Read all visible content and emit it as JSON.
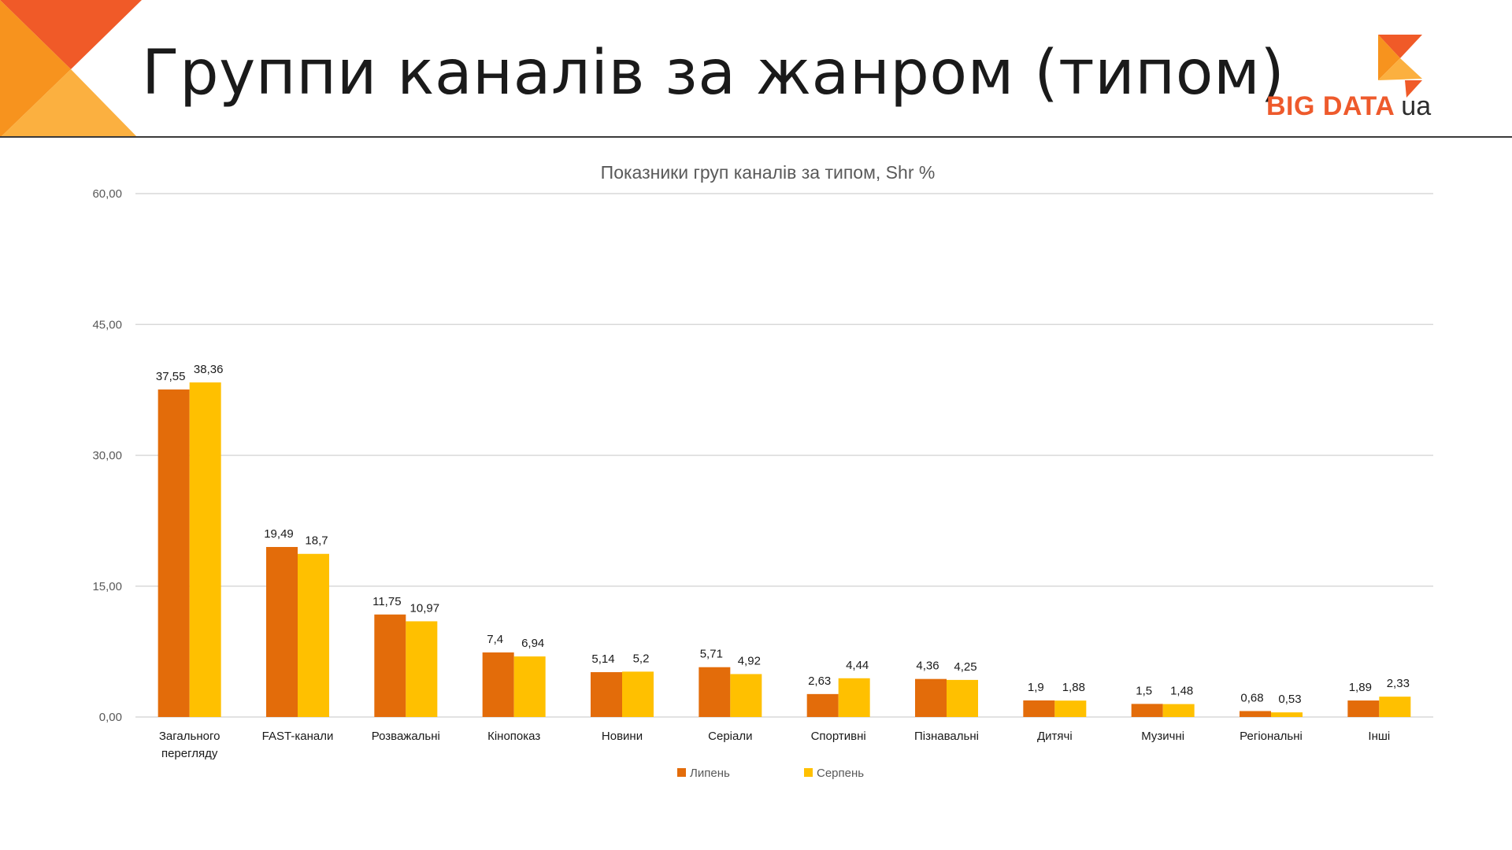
{
  "slide": {
    "title": "Группи каналів за жанром (типом)",
    "logo": {
      "text_main": "BIG DATA",
      "text_suffix": "ua"
    }
  },
  "colors": {
    "july": "#e36c0a",
    "august": "#ffc000",
    "grid": "#d9d9d9",
    "corner_dark": "#f05a28",
    "corner_light": "#f7931e"
  },
  "chart_data": {
    "type": "bar",
    "title": "Показники груп каналів за типом, Shr %",
    "categories": [
      [
        "Загального",
        "перегляду"
      ],
      [
        "FAST-канали"
      ],
      [
        "Розважальні"
      ],
      [
        "Кінопоказ"
      ],
      [
        "Новини"
      ],
      [
        "Серіали"
      ],
      [
        "Спортивні"
      ],
      [
        "Пізнавальні"
      ],
      [
        "Дитячі"
      ],
      [
        "Музичні"
      ],
      [
        "Регіональні"
      ],
      [
        "Інші"
      ]
    ],
    "series": [
      {
        "name": "Липень",
        "values": [
          37.55,
          19.49,
          11.75,
          7.4,
          5.14,
          5.71,
          2.63,
          4.36,
          1.9,
          1.5,
          0.68,
          1.89
        ],
        "labels": [
          "37,55",
          "19,49",
          "11,75",
          "7,4",
          "5,14",
          "5,71",
          "2,63",
          "4,36",
          "1,9",
          "1,5",
          "0,68",
          "1,89"
        ]
      },
      {
        "name": "Серпень",
        "values": [
          38.36,
          18.7,
          10.97,
          6.94,
          5.2,
          4.92,
          4.44,
          4.25,
          1.88,
          1.48,
          0.53,
          2.33
        ],
        "labels": [
          "38,36",
          "18,7",
          "10,97",
          "6,94",
          "5,2",
          "4,92",
          "4,44",
          "4,25",
          "1,88",
          "1,48",
          "0,53",
          "2,33"
        ]
      }
    ],
    "yticks": [
      "0,00",
      "15,00",
      "30,00",
      "45,00",
      "60,00"
    ],
    "ylim": [
      0,
      60
    ],
    "grid": true,
    "legend_position": "bottom"
  }
}
